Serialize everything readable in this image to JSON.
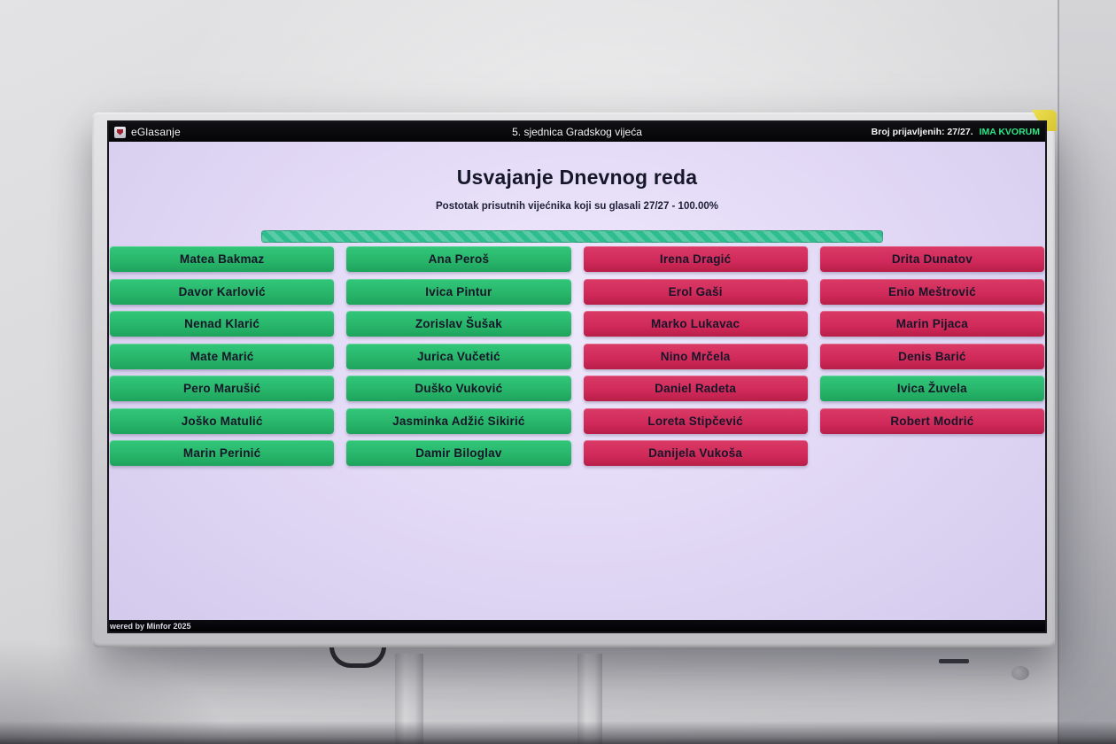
{
  "colors": {
    "vote_za": "#27b469",
    "vote_protiv": "#d0295a",
    "progress": "#2dbd8e",
    "quorum_green": "#2ee584"
  },
  "screen": {
    "header": {
      "app_title": "eGlasanje",
      "session_title": "5. sjednica Gradskog vijeća",
      "registered_label": "Broj prijavljenih: 27/27.",
      "quorum_label": "IMA KVORUM"
    },
    "vote_panel": {
      "title": "Usvajanje Dnevnog reda",
      "progress_label": "Postotak prisutnih vijećnika koji su glasali 27/27 - 100.00%",
      "voted_count": "27/27",
      "percent": "100.00%",
      "progress_fill_percent": 100
    },
    "columns": [
      {
        "members": [
          {
            "name": "Matea Bakmaz",
            "vote": "za"
          },
          {
            "name": "Davor Karlović",
            "vote": "za"
          },
          {
            "name": "Nenad Klarić",
            "vote": "za"
          },
          {
            "name": "Mate Marić",
            "vote": "za"
          },
          {
            "name": "Pero Marušić",
            "vote": "za"
          },
          {
            "name": "Joško Matulić",
            "vote": "za"
          },
          {
            "name": "Marin Perinić",
            "vote": "za"
          }
        ]
      },
      {
        "members": [
          {
            "name": "Ana Peroš",
            "vote": "za"
          },
          {
            "name": "Ivica Pintur",
            "vote": "za"
          },
          {
            "name": "Zorislav Šušak",
            "vote": "za"
          },
          {
            "name": "Jurica Vučetić",
            "vote": "za"
          },
          {
            "name": "Duško Vuković",
            "vote": "za"
          },
          {
            "name": "Jasminka Adžić Sikirić",
            "vote": "za"
          },
          {
            "name": "Damir Biloglav",
            "vote": "za"
          }
        ]
      },
      {
        "members": [
          {
            "name": "Irena Dragić",
            "vote": "protiv"
          },
          {
            "name": "Erol Gaši",
            "vote": "protiv"
          },
          {
            "name": "Marko Lukavac",
            "vote": "protiv"
          },
          {
            "name": "Nino Mrčela",
            "vote": "protiv"
          },
          {
            "name": "Daniel Radeta",
            "vote": "protiv"
          },
          {
            "name": "Loreta Stipčević",
            "vote": "protiv"
          },
          {
            "name": "Danijela Vukoša",
            "vote": "protiv"
          }
        ]
      },
      {
        "members": [
          {
            "name": "Drita Dunatov",
            "vote": "protiv"
          },
          {
            "name": "Enio Meštrović",
            "vote": "protiv"
          },
          {
            "name": "Marin Pijaca",
            "vote": "protiv"
          },
          {
            "name": "Denis Barić",
            "vote": "protiv"
          },
          {
            "name": "Ivica Žuvela",
            "vote": "za"
          },
          {
            "name": "Robert Modrić",
            "vote": "protiv"
          }
        ]
      }
    ],
    "footer": {
      "powered_by": "wered by Minfor 2025"
    }
  }
}
